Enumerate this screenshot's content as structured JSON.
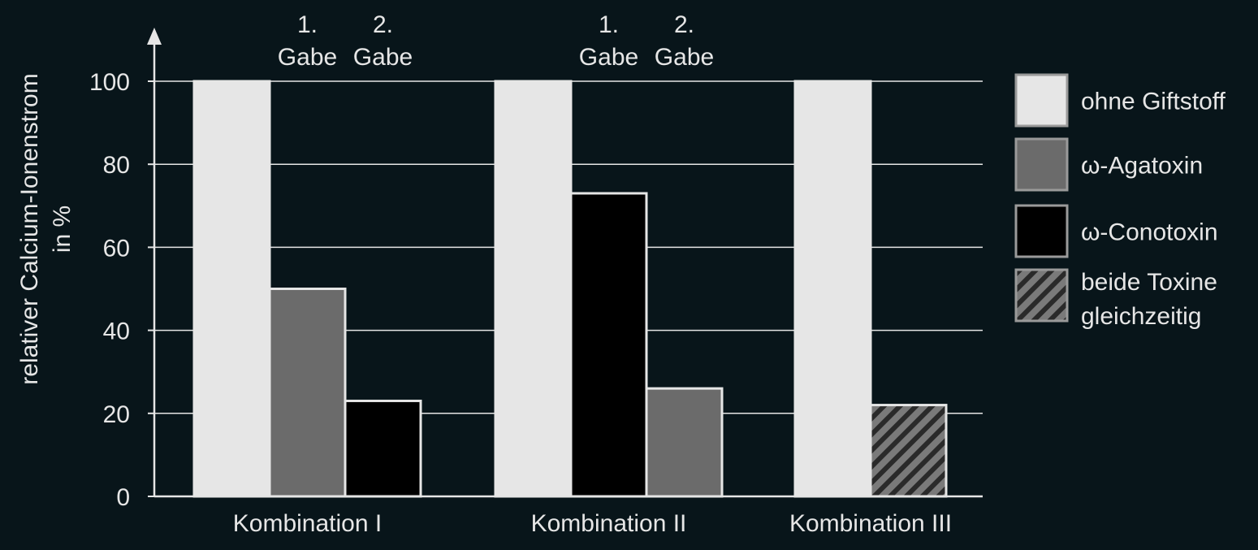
{
  "colors": {
    "background": "#08151a",
    "text": "#e6e6e6",
    "axis": "#e6e6e6",
    "grid": "#e6e6e6",
    "bar_border": "#e6e6e6",
    "ohne_giftstoff": "#e6e6e6",
    "agatoxin": "#6b6b6b",
    "conotoxin": "#000000",
    "beide_stripe_dark": "#2a2a2a",
    "beide_stripe_light": "#7a7a7a"
  },
  "chart_data": {
    "type": "bar",
    "ylabel_line1": "relativer Calcium-Ionenstrom",
    "ylabel_line2": "in %",
    "ylim": [
      0,
      100
    ],
    "yticks": [
      "0",
      "20",
      "40",
      "60",
      "80",
      "100"
    ],
    "ytick_values": [
      0,
      20,
      40,
      60,
      80,
      100
    ],
    "grid": true,
    "legend_position": "right",
    "legend": [
      {
        "key": "ohne",
        "label": "ohne Giftstoff"
      },
      {
        "key": "aga",
        "label": "ω-Agatoxin"
      },
      {
        "key": "cono",
        "label": "ω-Conotoxin"
      },
      {
        "key": "beide",
        "label_line1": "beide Toxine",
        "label_line2": "gleichzeitig"
      }
    ],
    "groups": [
      {
        "name": "Kombination I",
        "bars": [
          {
            "series": "ohne",
            "value": 100
          },
          {
            "series": "aga",
            "value": 50,
            "annotation_line1": "1.",
            "annotation_line2": "Gabe"
          },
          {
            "series": "cono",
            "value": 23,
            "annotation_line1": "2.",
            "annotation_line2": "Gabe"
          }
        ]
      },
      {
        "name": "Kombination II",
        "bars": [
          {
            "series": "ohne",
            "value": 100
          },
          {
            "series": "cono",
            "value": 73,
            "annotation_line1": "1.",
            "annotation_line2": "Gabe"
          },
          {
            "series": "aga",
            "value": 26,
            "annotation_line1": "2.",
            "annotation_line2": "Gabe"
          }
        ]
      },
      {
        "name": "Kombination III",
        "bars": [
          {
            "series": "ohne",
            "value": 100
          },
          {
            "series": "beide",
            "value": 22
          }
        ]
      }
    ]
  }
}
